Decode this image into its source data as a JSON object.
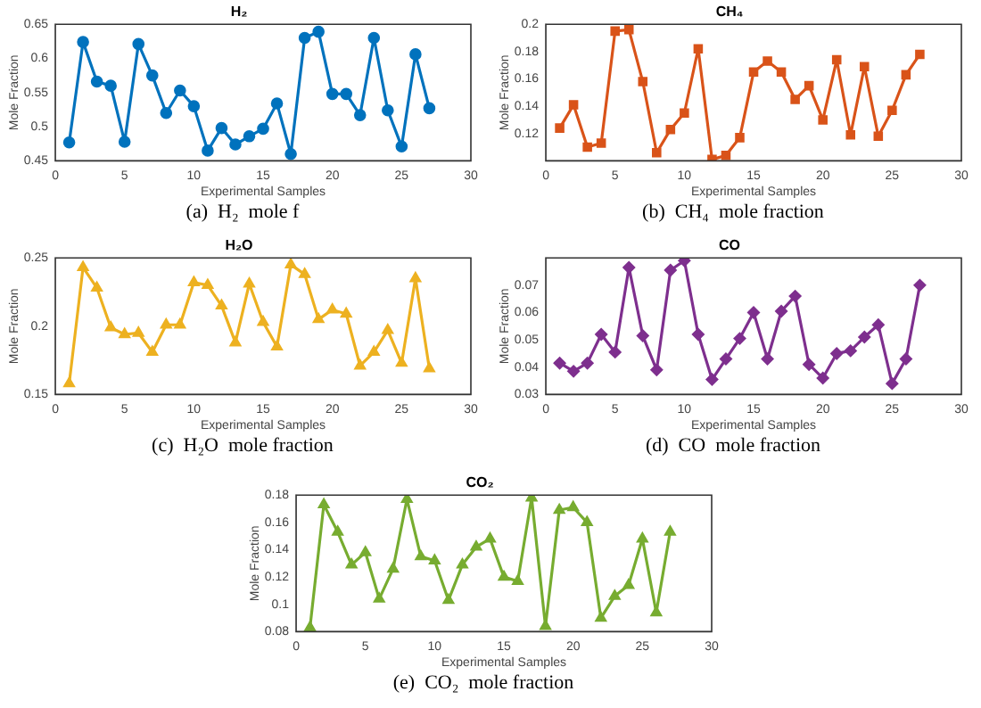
{
  "chart_data": [
    {
      "type": "line",
      "title": "H₂",
      "xlabel": "Experimental Samples",
      "ylabel": "Mole Fraction",
      "annotations": [
        "(a)  H₂  mole f"
      ],
      "x": [
        1,
        2,
        3,
        4,
        5,
        6,
        7,
        8,
        9,
        10,
        11,
        12,
        13,
        14,
        15,
        16,
        17,
        18,
        19,
        20,
        21,
        22,
        23,
        24,
        25,
        26,
        27
      ],
      "xlim": [
        0,
        30
      ],
      "xticks": [
        0,
        5,
        10,
        15,
        20,
        25,
        30
      ],
      "ylim": [
        0.45,
        0.65
      ],
      "yticks": [
        0.45,
        0.5,
        0.55,
        0.6,
        0.65
      ],
      "marker": "circle",
      "legend": false,
      "grid": false,
      "series": [
        {
          "color": "#0072bd",
          "values": [
            0.477,
            0.624,
            0.566,
            0.56,
            0.478,
            0.621,
            0.575,
            0.52,
            0.553,
            0.53,
            0.465,
            0.498,
            0.474,
            0.486,
            0.497,
            0.534,
            0.46,
            0.63,
            0.639,
            0.548,
            0.548,
            0.517,
            0.63,
            0.524,
            0.471,
            0.606,
            0.527
          ]
        }
      ]
    },
    {
      "type": "line",
      "title": "CH₄",
      "xlabel": "Experimental Samples",
      "ylabel": "Mole Fraction",
      "annotations": [
        "(b)  CH₄  mole fraction"
      ],
      "x": [
        1,
        2,
        3,
        4,
        5,
        6,
        7,
        8,
        9,
        10,
        11,
        12,
        13,
        14,
        15,
        16,
        17,
        18,
        19,
        20,
        21,
        22,
        23,
        24,
        25,
        26,
        27
      ],
      "xlim": [
        0,
        30
      ],
      "xticks": [
        0,
        5,
        10,
        15,
        20,
        25,
        30
      ],
      "ylim": [
        0.1,
        0.2
      ],
      "yticks": [
        0.12,
        0.14,
        0.16,
        0.18,
        0.2
      ],
      "marker": "square",
      "legend": false,
      "grid": false,
      "series": [
        {
          "color": "#d95319",
          "values": [
            0.124,
            0.141,
            0.11,
            0.113,
            0.195,
            0.196,
            0.158,
            0.106,
            0.123,
            0.135,
            0.182,
            0.101,
            0.104,
            0.117,
            0.165,
            0.173,
            0.165,
            0.145,
            0.155,
            0.13,
            0.174,
            0.119,
            0.169,
            0.118,
            0.137,
            0.163,
            0.178
          ]
        }
      ]
    },
    {
      "type": "line",
      "title": "H₂O",
      "xlabel": "Experimental Samples",
      "ylabel": "Mole Fraction",
      "annotations": [
        "(c)  H₂O  mole fraction"
      ],
      "x": [
        1,
        2,
        3,
        4,
        5,
        6,
        7,
        8,
        9,
        10,
        11,
        12,
        13,
        14,
        15,
        16,
        17,
        18,
        19,
        20,
        21,
        22,
        23,
        24,
        25,
        26,
        27
      ],
      "xlim": [
        0,
        30
      ],
      "xticks": [
        0,
        5,
        10,
        15,
        20,
        25,
        30
      ],
      "ylim": [
        0.15,
        0.25
      ],
      "yticks": [
        0.15,
        0.2,
        0.25
      ],
      "marker": "triangle",
      "legend": false,
      "grid": false,
      "series": [
        {
          "color": "#edb120",
          "values": [
            0.158,
            0.243,
            0.228,
            0.199,
            0.194,
            0.195,
            0.181,
            0.201,
            0.201,
            0.232,
            0.23,
            0.215,
            0.188,
            0.231,
            0.203,
            0.185,
            0.245,
            0.238,
            0.205,
            0.212,
            0.209,
            0.171,
            0.181,
            0.197,
            0.173,
            0.235,
            0.169
          ]
        }
      ]
    },
    {
      "type": "line",
      "title": "CO",
      "xlabel": "Experimental Samples",
      "ylabel": "Mole Fraction",
      "annotations": [
        "(d)  CO  mole fraction"
      ],
      "x": [
        1,
        2,
        3,
        4,
        5,
        6,
        7,
        8,
        9,
        10,
        11,
        12,
        13,
        14,
        15,
        16,
        17,
        18,
        19,
        20,
        21,
        22,
        23,
        24,
        25,
        26,
        27
      ],
      "xlim": [
        0,
        30
      ],
      "xticks": [
        0,
        5,
        10,
        15,
        20,
        25,
        30
      ],
      "ylim": [
        0.03,
        0.08
      ],
      "yticks": [
        0.03,
        0.04,
        0.05,
        0.06,
        0.07
      ],
      "marker": "diamond",
      "legend": false,
      "grid": false,
      "series": [
        {
          "color": "#7e2f8e",
          "values": [
            0.0415,
            0.0385,
            0.0415,
            0.052,
            0.0455,
            0.0765,
            0.0515,
            0.039,
            0.0755,
            0.079,
            0.052,
            0.0355,
            0.043,
            0.0505,
            0.06,
            0.043,
            0.0605,
            0.066,
            0.041,
            0.036,
            0.045,
            0.046,
            0.051,
            0.0555,
            0.034,
            0.043,
            0.07
          ]
        }
      ]
    },
    {
      "type": "line",
      "title": "CO₂",
      "xlabel": "Experimental Samples",
      "ylabel": "Mole Fraction",
      "annotations": [
        "(e)  CO₂  mole fraction"
      ],
      "x": [
        1,
        2,
        3,
        4,
        5,
        6,
        7,
        8,
        9,
        10,
        11,
        12,
        13,
        14,
        15,
        16,
        17,
        18,
        19,
        20,
        21,
        22,
        23,
        24,
        25,
        26,
        27
      ],
      "xlim": [
        0,
        30
      ],
      "xticks": [
        0,
        5,
        10,
        15,
        20,
        25,
        30
      ],
      "ylim": [
        0.08,
        0.18
      ],
      "yticks": [
        0.08,
        0.1,
        0.12,
        0.14,
        0.16,
        0.18
      ],
      "marker": "triangle",
      "legend": false,
      "grid": false,
      "series": [
        {
          "color": "#77ac30",
          "values": [
            0.083,
            0.173,
            0.153,
            0.129,
            0.138,
            0.104,
            0.126,
            0.177,
            0.135,
            0.132,
            0.103,
            0.129,
            0.142,
            0.148,
            0.12,
            0.117,
            0.178,
            0.084,
            0.169,
            0.171,
            0.16,
            0.09,
            0.106,
            0.114,
            0.148,
            0.094,
            0.153
          ]
        }
      ]
    }
  ]
}
